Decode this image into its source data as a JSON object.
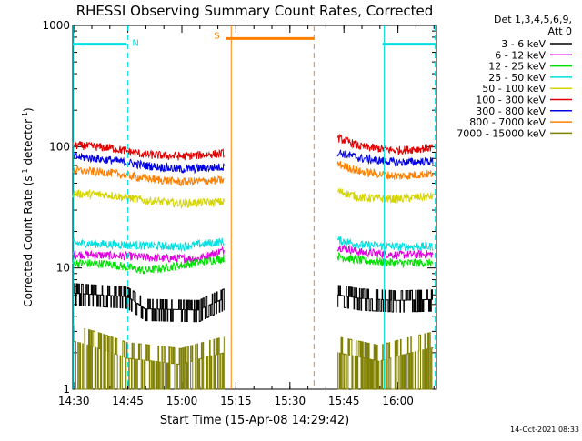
{
  "chart_data": {
    "type": "line",
    "title": "RHESSI Observing Summary Count Rates, Corrected",
    "xlabel": "Start Time (15-Apr-08 14:29:42)",
    "ylabel_main": "Corrected Count Rate (s",
    "ylabel_sup1": "-1",
    "ylabel_mid": " detector",
    "ylabel_sup2": "-1",
    "ylabel_end": ")",
    "yscale": "log",
    "ylim": [
      1,
      1000
    ],
    "xlim_minutes": [
      0,
      101
    ],
    "x_ticks": [
      {
        "label": "14:30",
        "minute": 0.3
      },
      {
        "label": "14:45",
        "minute": 15.3
      },
      {
        "label": "15:00",
        "minute": 30.3
      },
      {
        "label": "15:15",
        "minute": 45.3
      },
      {
        "label": "15:30",
        "minute": 60.3
      },
      {
        "label": "15:45",
        "minute": 75.3
      },
      {
        "label": "16:00",
        "minute": 90.3
      }
    ],
    "y_ticks": [
      {
        "label": "1",
        "value": 1
      },
      {
        "label": "10",
        "value": 10
      },
      {
        "label": "100",
        "value": 100
      },
      {
        "label": "1000",
        "value": 1000
      }
    ],
    "legend_header": [
      "Det 1,3,4,5,6,9,",
      "Att 0"
    ],
    "legend_position": "right",
    "footer_timestamp": "14-Oct-2021 08:33",
    "data_gap": {
      "start": 42.5,
      "end": 73.5
    },
    "series": [
      {
        "name": "3 - 6 keV",
        "color": "#000000",
        "segments": [
          {
            "x": [
              0,
              15,
              20,
              35,
              42
            ],
            "y": [
              6.2,
              5.8,
              4.6,
              4.5,
              5.6
            ]
          },
          {
            "x": [
              73.5,
              80,
              90,
              100
            ],
            "y": [
              6.0,
              5.6,
              5.4,
              5.5
            ]
          }
        ]
      },
      {
        "name": "6 - 12 keV",
        "color": "#e000e0",
        "segments": [
          {
            "x": [
              0,
              15,
              25,
              35,
              42
            ],
            "y": [
              13,
              12.5,
              12,
              12,
              14
            ]
          },
          {
            "x": [
              73.5,
              80,
              90,
              100
            ],
            "y": [
              15,
              13.5,
              12.8,
              13
            ]
          }
        ]
      },
      {
        "name": "12 - 25 keV",
        "color": "#00e000",
        "segments": [
          {
            "x": [
              0,
              10,
              20,
              30,
              42
            ],
            "y": [
              11,
              10.8,
              9.5,
              10.5,
              12
            ]
          },
          {
            "x": [
              73.5,
              80,
              90,
              100
            ],
            "y": [
              12.5,
              11.5,
              11,
              11
            ]
          }
        ]
      },
      {
        "name": "25 - 50 keV",
        "color": "#00e0e0",
        "segments": [
          {
            "x": [
              0,
              15,
              30,
              42
            ],
            "y": [
              16,
              15.5,
              15,
              16.5
            ]
          },
          {
            "x": [
              73.5,
              80,
              90,
              100
            ],
            "y": [
              17,
              15.5,
              15,
              15
            ]
          }
        ]
      },
      {
        "name": "50 - 100 keV",
        "color": "#d4d400",
        "segments": [
          {
            "x": [
              0,
              10,
              20,
              30,
              42
            ],
            "y": [
              41,
              40,
              36,
              34,
              35
            ]
          },
          {
            "x": [
              73.5,
              80,
              90,
              100
            ],
            "y": [
              43,
              38,
              37,
              39
            ]
          }
        ]
      },
      {
        "name": "100 - 300 keV",
        "color": "#e00000",
        "segments": [
          {
            "x": [
              0,
              10,
              20,
              30,
              42
            ],
            "y": [
              103,
              98,
              86,
              83,
              88
            ]
          },
          {
            "x": [
              73.5,
              80,
              90,
              100
            ],
            "y": [
              118,
              100,
              93,
              98
            ]
          }
        ]
      },
      {
        "name": "300 - 800 keV",
        "color": "#0000e0",
        "segments": [
          {
            "x": [
              0,
              10,
              20,
              30,
              42
            ],
            "y": [
              83,
              78,
              70,
              65,
              68
            ]
          },
          {
            "x": [
              73.5,
              80,
              90,
              100
            ],
            "y": [
              90,
              80,
              74,
              76
            ]
          }
        ]
      },
      {
        "name": "800 - 7000 keV",
        "color": "#ff8000",
        "segments": [
          {
            "x": [
              0,
              10,
              20,
              30,
              42
            ],
            "y": [
              64,
              61,
              55,
              51,
              53
            ]
          },
          {
            "x": [
              73.5,
              80,
              90,
              100
            ],
            "y": [
              72,
              62,
              57,
              60
            ]
          }
        ]
      },
      {
        "name": "7000 - 15000 keV",
        "color": "#808000",
        "segments": [
          {
            "x": [
              0,
              15,
              30,
              42
            ],
            "y": [
              2.5,
              1.8,
              1.6,
              2.0
            ]
          },
          {
            "x": [
              73.5,
              85,
              100
            ],
            "y": [
              2.0,
              1.7,
              2.2
            ]
          }
        ]
      }
    ],
    "flag_bars": [
      {
        "label": "N",
        "color": "#00e0e0",
        "x_start": 0,
        "x_end": 15,
        "level": 700
      },
      {
        "label": "",
        "color": "#00e0e0",
        "x_start": 86,
        "x_end": 101,
        "level": 700
      },
      {
        "label": "S",
        "color": "#ff8000",
        "x_start": 42.5,
        "x_end": 67,
        "level": 780
      }
    ],
    "vertical_lines": [
      {
        "minute": 0.2,
        "color": "#00e0e0",
        "style": "solid"
      },
      {
        "minute": 15.3,
        "color": "#00e0e0",
        "style": "dashed"
      },
      {
        "minute": 86.5,
        "color": "#00e0e0",
        "style": "solid"
      },
      {
        "minute": 100.6,
        "color": "#00e0e0",
        "style": "dashed"
      },
      {
        "minute": 44.0,
        "color": "#ff8000",
        "style": "solid"
      },
      {
        "minute": 67.0,
        "color": "#ff8000",
        "style": "dashed"
      }
    ]
  }
}
